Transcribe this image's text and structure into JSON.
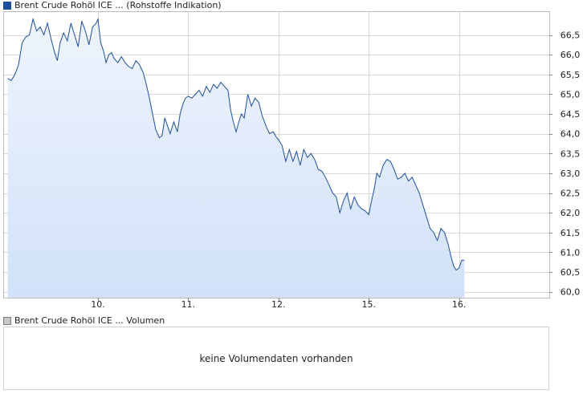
{
  "chart_data": {
    "type": "area",
    "title": "",
    "series_label": "Brent Crude Rohöl ICE ... (Rohstoffe Indikation)",
    "x_tick_labels": [
      "10.",
      "11.",
      "12.",
      "15.",
      "16."
    ],
    "y_ticks": [
      60.0,
      60.5,
      61.0,
      61.5,
      62.0,
      62.5,
      63.0,
      63.5,
      64.0,
      64.5,
      65.0,
      65.5,
      66.0,
      66.5
    ],
    "ylim": [
      59.85,
      67.1
    ],
    "y_axis_position": "right",
    "grid": true,
    "colors": {
      "line": "#1f4e9c",
      "area_top": "#eef4fd",
      "area_bottom": "#d2e1f8",
      "grid": "#d9d9d9"
    },
    "note": "x is session progress in days; 10. = day 1, 11. = day 2, 12. = day 3, 15. = day 4, 16. = day 5",
    "x_ticks_pos": [
      1,
      2,
      3,
      4,
      5
    ],
    "series": [
      {
        "x": 0.0,
        "y": 65.4
      },
      {
        "x": 0.04,
        "y": 65.35
      },
      {
        "x": 0.08,
        "y": 65.5
      },
      {
        "x": 0.12,
        "y": 65.75
      },
      {
        "x": 0.16,
        "y": 66.3
      },
      {
        "x": 0.2,
        "y": 66.45
      },
      {
        "x": 0.24,
        "y": 66.5
      },
      {
        "x": 0.28,
        "y": 66.9
      },
      {
        "x": 0.32,
        "y": 66.6
      },
      {
        "x": 0.36,
        "y": 66.7
      },
      {
        "x": 0.4,
        "y": 66.5
      },
      {
        "x": 0.44,
        "y": 66.8
      },
      {
        "x": 0.48,
        "y": 66.4
      },
      {
        "x": 0.52,
        "y": 66.05
      },
      {
        "x": 0.55,
        "y": 65.85
      },
      {
        "x": 0.58,
        "y": 66.3
      },
      {
        "x": 0.62,
        "y": 66.55
      },
      {
        "x": 0.66,
        "y": 66.35
      },
      {
        "x": 0.7,
        "y": 66.8
      },
      {
        "x": 0.74,
        "y": 66.5
      },
      {
        "x": 0.78,
        "y": 66.2
      },
      {
        "x": 0.82,
        "y": 66.85
      },
      {
        "x": 0.86,
        "y": 66.6
      },
      {
        "x": 0.9,
        "y": 66.25
      },
      {
        "x": 0.94,
        "y": 66.7
      },
      {
        "x": 0.98,
        "y": 66.8
      },
      {
        "x": 1.0,
        "y": 66.9
      },
      {
        "x": 1.03,
        "y": 66.3
      },
      {
        "x": 1.06,
        "y": 66.1
      },
      {
        "x": 1.09,
        "y": 65.8
      },
      {
        "x": 1.12,
        "y": 66.0
      },
      {
        "x": 1.15,
        "y": 66.05
      },
      {
        "x": 1.18,
        "y": 65.9
      },
      {
        "x": 1.22,
        "y": 65.8
      },
      {
        "x": 1.26,
        "y": 65.95
      },
      {
        "x": 1.3,
        "y": 65.8
      },
      {
        "x": 1.34,
        "y": 65.7
      },
      {
        "x": 1.38,
        "y": 65.65
      },
      {
        "x": 1.42,
        "y": 65.85
      },
      {
        "x": 1.46,
        "y": 65.75
      },
      {
        "x": 1.5,
        "y": 65.55
      },
      {
        "x": 1.53,
        "y": 65.3
      },
      {
        "x": 1.56,
        "y": 65.0
      },
      {
        "x": 1.6,
        "y": 64.55
      },
      {
        "x": 1.64,
        "y": 64.1
      },
      {
        "x": 1.68,
        "y": 63.9
      },
      {
        "x": 1.71,
        "y": 63.95
      },
      {
        "x": 1.74,
        "y": 64.4
      },
      {
        "x": 1.77,
        "y": 64.2
      },
      {
        "x": 1.8,
        "y": 64.0
      },
      {
        "x": 1.84,
        "y": 64.3
      },
      {
        "x": 1.88,
        "y": 64.05
      },
      {
        "x": 1.91,
        "y": 64.5
      },
      {
        "x": 1.94,
        "y": 64.75
      },
      {
        "x": 1.97,
        "y": 64.9
      },
      {
        "x": 2.0,
        "y": 64.95
      },
      {
        "x": 2.04,
        "y": 64.9
      },
      {
        "x": 2.08,
        "y": 65.0
      },
      {
        "x": 2.12,
        "y": 65.1
      },
      {
        "x": 2.16,
        "y": 64.95
      },
      {
        "x": 2.2,
        "y": 65.2
      },
      {
        "x": 2.24,
        "y": 65.05
      },
      {
        "x": 2.28,
        "y": 65.25
      },
      {
        "x": 2.32,
        "y": 65.15
      },
      {
        "x": 2.36,
        "y": 65.3
      },
      {
        "x": 2.4,
        "y": 65.2
      },
      {
        "x": 2.44,
        "y": 65.1
      },
      {
        "x": 2.47,
        "y": 64.6
      },
      {
        "x": 2.5,
        "y": 64.3
      },
      {
        "x": 2.53,
        "y": 64.05
      },
      {
        "x": 2.56,
        "y": 64.3
      },
      {
        "x": 2.59,
        "y": 64.5
      },
      {
        "x": 2.62,
        "y": 64.4
      },
      {
        "x": 2.66,
        "y": 65.0
      },
      {
        "x": 2.7,
        "y": 64.7
      },
      {
        "x": 2.74,
        "y": 64.9
      },
      {
        "x": 2.78,
        "y": 64.8
      },
      {
        "x": 2.82,
        "y": 64.45
      },
      {
        "x": 2.86,
        "y": 64.2
      },
      {
        "x": 2.9,
        "y": 64.0
      },
      {
        "x": 2.94,
        "y": 64.05
      },
      {
        "x": 2.98,
        "y": 63.9
      },
      {
        "x": 3.0,
        "y": 63.85
      },
      {
        "x": 3.04,
        "y": 63.7
      },
      {
        "x": 3.08,
        "y": 63.3
      },
      {
        "x": 3.12,
        "y": 63.6
      },
      {
        "x": 3.16,
        "y": 63.3
      },
      {
        "x": 3.2,
        "y": 63.55
      },
      {
        "x": 3.24,
        "y": 63.2
      },
      {
        "x": 3.28,
        "y": 63.6
      },
      {
        "x": 3.32,
        "y": 63.4
      },
      {
        "x": 3.36,
        "y": 63.5
      },
      {
        "x": 3.4,
        "y": 63.35
      },
      {
        "x": 3.44,
        "y": 63.1
      },
      {
        "x": 3.48,
        "y": 63.05
      },
      {
        "x": 3.52,
        "y": 62.9
      },
      {
        "x": 3.56,
        "y": 62.7
      },
      {
        "x": 3.6,
        "y": 62.5
      },
      {
        "x": 3.64,
        "y": 62.4
      },
      {
        "x": 3.68,
        "y": 62.0
      },
      {
        "x": 3.72,
        "y": 62.3
      },
      {
        "x": 3.76,
        "y": 62.5
      },
      {
        "x": 3.8,
        "y": 62.1
      },
      {
        "x": 3.84,
        "y": 62.4
      },
      {
        "x": 3.88,
        "y": 62.2
      },
      {
        "x": 3.92,
        "y": 62.1
      },
      {
        "x": 3.96,
        "y": 62.05
      },
      {
        "x": 4.0,
        "y": 61.95
      },
      {
        "x": 4.03,
        "y": 62.3
      },
      {
        "x": 4.06,
        "y": 62.6
      },
      {
        "x": 4.09,
        "y": 63.0
      },
      {
        "x": 4.12,
        "y": 62.9
      },
      {
        "x": 4.16,
        "y": 63.2
      },
      {
        "x": 4.2,
        "y": 63.35
      },
      {
        "x": 4.24,
        "y": 63.3
      },
      {
        "x": 4.28,
        "y": 63.1
      },
      {
        "x": 4.32,
        "y": 62.85
      },
      {
        "x": 4.36,
        "y": 62.9
      },
      {
        "x": 4.4,
        "y": 63.0
      },
      {
        "x": 4.44,
        "y": 62.8
      },
      {
        "x": 4.48,
        "y": 62.9
      },
      {
        "x": 4.52,
        "y": 62.7
      },
      {
        "x": 4.56,
        "y": 62.5
      },
      {
        "x": 4.6,
        "y": 62.2
      },
      {
        "x": 4.64,
        "y": 61.9
      },
      {
        "x": 4.68,
        "y": 61.6
      },
      {
        "x": 4.72,
        "y": 61.5
      },
      {
        "x": 4.76,
        "y": 61.3
      },
      {
        "x": 4.8,
        "y": 61.6
      },
      {
        "x": 4.84,
        "y": 61.5
      },
      {
        "x": 4.88,
        "y": 61.2
      },
      {
        "x": 4.91,
        "y": 60.9
      },
      {
        "x": 4.94,
        "y": 60.65
      },
      {
        "x": 4.97,
        "y": 60.55
      },
      {
        "x": 5.0,
        "y": 60.6
      },
      {
        "x": 5.03,
        "y": 60.8
      },
      {
        "x": 5.06,
        "y": 60.8
      }
    ],
    "x_range": [
      -0.05,
      6.0
    ]
  },
  "volume_panel": {
    "label": "Brent Crude Rohöl ICE ... Volumen",
    "message": "keine Volumendaten vorhanden"
  }
}
